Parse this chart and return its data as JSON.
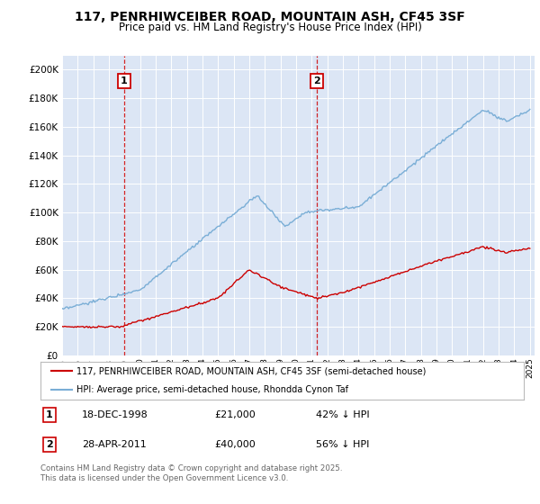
{
  "title": "117, PENRHIWCEIBER ROAD, MOUNTAIN ASH, CF45 3SF",
  "subtitle": "Price paid vs. HM Land Registry's House Price Index (HPI)",
  "legend_label_red": "117, PENRHIWCEIBER ROAD, MOUNTAIN ASH, CF45 3SF (semi-detached house)",
  "legend_label_blue": "HPI: Average price, semi-detached house, Rhondda Cynon Taf",
  "annotation_1_date": "18-DEC-1998",
  "annotation_1_price": "£21,000",
  "annotation_1_hpi": "42% ↓ HPI",
  "annotation_2_date": "28-APR-2011",
  "annotation_2_price": "£40,000",
  "annotation_2_hpi": "56% ↓ HPI",
  "footnote": "Contains HM Land Registry data © Crown copyright and database right 2025.\nThis data is licensed under the Open Government Licence v3.0.",
  "ylim": [
    0,
    210000
  ],
  "y_ticks": [
    0,
    20000,
    40000,
    60000,
    80000,
    100000,
    120000,
    140000,
    160000,
    180000,
    200000
  ],
  "vline_1_year": 1998.96,
  "vline_2_year": 2011.32,
  "plot_bg_color": "#dce6f5",
  "red_color": "#cc0000",
  "blue_color": "#7aaed6",
  "vline_color": "#cc0000",
  "grid_color": "#ffffff",
  "title_fontsize": 10,
  "subtitle_fontsize": 8.5
}
